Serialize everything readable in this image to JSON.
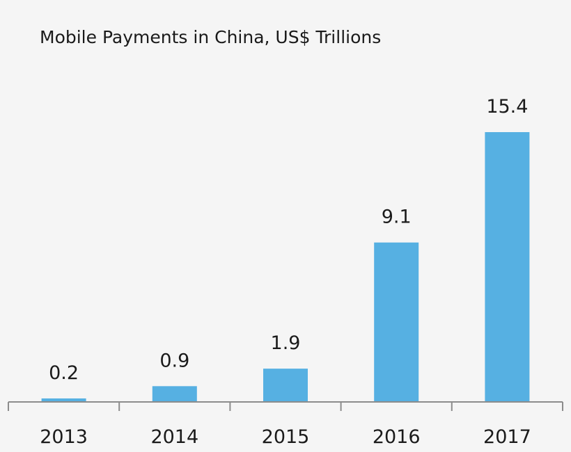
{
  "chart_data": {
    "type": "bar",
    "title": "Mobile Payments in China, US$ Trillions",
    "xlabel": "",
    "ylabel": "",
    "categories": [
      "2013",
      "2014",
      "2015",
      "2016",
      "2017"
    ],
    "values": [
      0.2,
      0.9,
      1.9,
      9.1,
      15.4
    ],
    "value_labels": [
      "0.2",
      "0.9",
      "1.9",
      "9.1",
      "15.4"
    ],
    "ylim": [
      0,
      15.4
    ],
    "grid": false,
    "legend": "none",
    "colors": {
      "bar": "#56b0e2",
      "axis": "#8c8c8c",
      "text": "#1a1a1a",
      "background": "#f5f5f5"
    }
  }
}
